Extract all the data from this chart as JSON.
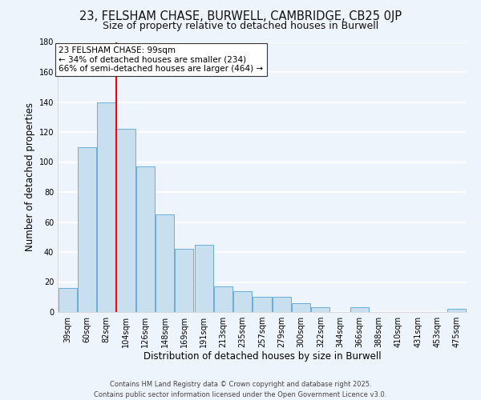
{
  "title1": "23, FELSHAM CHASE, BURWELL, CAMBRIDGE, CB25 0JP",
  "title2": "Size of property relative to detached houses in Burwell",
  "xlabel": "Distribution of detached houses by size in Burwell",
  "ylabel": "Number of detached properties",
  "categories": [
    "39sqm",
    "60sqm",
    "82sqm",
    "104sqm",
    "126sqm",
    "148sqm",
    "169sqm",
    "191sqm",
    "213sqm",
    "235sqm",
    "257sqm",
    "279sqm",
    "300sqm",
    "322sqm",
    "344sqm",
    "366sqm",
    "388sqm",
    "410sqm",
    "431sqm",
    "453sqm",
    "475sqm"
  ],
  "values": [
    16,
    110,
    140,
    122,
    97,
    65,
    42,
    45,
    17,
    14,
    10,
    10,
    6,
    3,
    0,
    3,
    0,
    0,
    0,
    0,
    2
  ],
  "bar_color": "#c8dff0",
  "bar_edge_color": "#6aadd5",
  "vline_color": "red",
  "vline_x_idx": 3,
  "annotation_line1": "23 FELSHAM CHASE: 99sqm",
  "annotation_line2": "← 34% of detached houses are smaller (234)",
  "annotation_line3": "66% of semi-detached houses are larger (464) →",
  "annotation_box_color": "white",
  "annotation_box_edge": "#333333",
  "ylim": [
    0,
    180
  ],
  "yticks": [
    0,
    20,
    40,
    60,
    80,
    100,
    120,
    140,
    160,
    180
  ],
  "footnote": "Contains HM Land Registry data © Crown copyright and database right 2025.\nContains public sector information licensed under the Open Government Licence v3.0.",
  "bg_color": "#eef4fb",
  "grid_color": "#ffffff",
  "title1_fontsize": 10.5,
  "title2_fontsize": 9,
  "axis_label_fontsize": 8.5,
  "tick_fontsize": 7,
  "annotation_fontsize": 7.5,
  "footnote_fontsize": 6
}
